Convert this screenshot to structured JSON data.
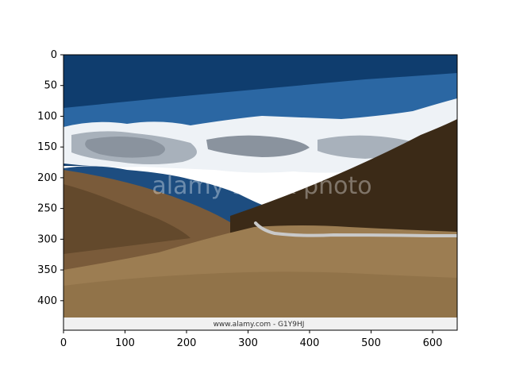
{
  "axes": {
    "x_ticks": [
      "0",
      "100",
      "200",
      "300",
      "400",
      "500",
      "600"
    ],
    "y_ticks": [
      "0",
      "50",
      "100",
      "150",
      "200",
      "250",
      "300",
      "350",
      "400"
    ],
    "x_range": [
      0,
      640
    ],
    "y_range": [
      0,
      448
    ],
    "y_inverted": true
  },
  "photo": {
    "subject": "mountain valley with winding road under blue sky and white clouds",
    "watermark": "alamy stock photo",
    "footer": "www.alamy.com - G1Y9HJ",
    "colors": {
      "sky_dark": "#0f3d6e",
      "sky_mid": "#2b67a3",
      "cloud_white": "#eef2f6",
      "cloud_grey": "#a8b1bb",
      "cloud_dark": "#8a939e",
      "far_ridge_blue": "#1d4d80",
      "hill_dark": "#3b2a17",
      "hill_brown": "#7a5b3a",
      "hill_tan": "#9c7d52",
      "road": "#c9c9c9",
      "footer_bg": "#f1f1f1"
    }
  }
}
